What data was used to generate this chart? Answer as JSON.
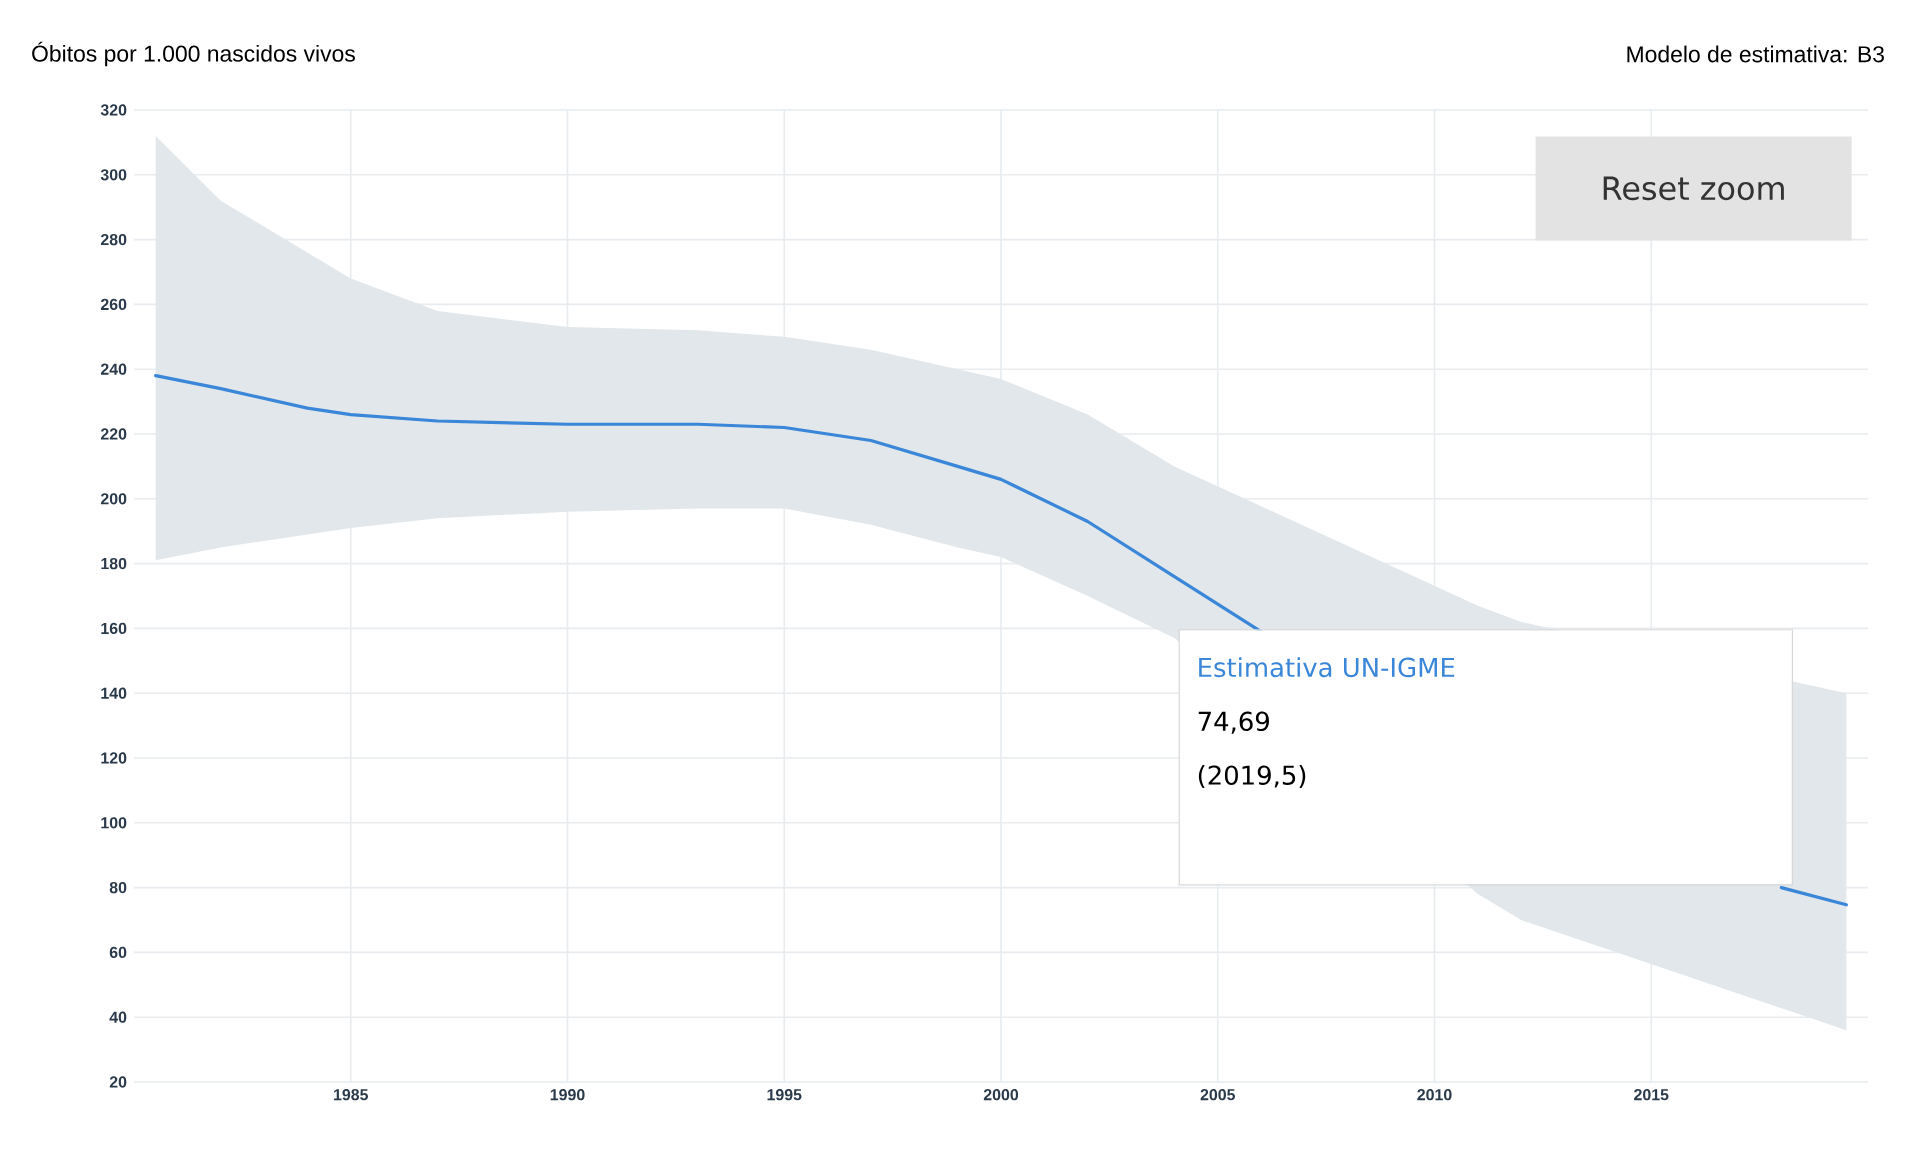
{
  "chart_data": {
    "type": "line",
    "title": "Óbitos por 1.000 nascidos vivos",
    "subtitle": "Modelo de estimativa: B3",
    "x": [
      1980.5,
      1982,
      1984,
      1985,
      1987,
      1990,
      1993,
      1995,
      1997,
      1999,
      2000,
      2002,
      2004,
      2006,
      2008,
      2010,
      2011,
      2012,
      2014,
      2016,
      2018,
      2019.5
    ],
    "series": [
      {
        "name": "Estimativa UN-IGME",
        "color": "#3a86d8",
        "values": [
          238,
          234,
          228,
          226,
          224,
          223,
          223,
          222,
          218,
          210,
          206,
          193,
          176,
          159,
          null,
          null,
          null,
          null,
          null,
          null,
          80,
          74.69
        ],
        "lower": [
          181,
          185,
          189,
          191,
          194,
          196,
          197,
          197,
          192,
          185,
          182,
          170,
          157,
          null,
          null,
          null,
          78,
          70,
          null,
          null,
          null,
          36
        ],
        "upper": [
          312,
          292,
          276,
          268,
          258,
          253,
          252,
          250,
          246,
          240,
          237,
          226,
          210,
          null,
          null,
          null,
          167,
          162,
          null,
          null,
          null,
          140
        ]
      }
    ],
    "xlim": [
      1980,
      2020
    ],
    "ylim": [
      20,
      320
    ],
    "xticks": [
      1985,
      1990,
      1995,
      2000,
      2005,
      2010,
      2015
    ],
    "yticks": [
      20,
      40,
      60,
      80,
      100,
      120,
      140,
      160,
      180,
      200,
      220,
      240,
      260,
      280,
      300,
      320
    ],
    "grid": true,
    "annotations": [
      "Reset zoom",
      "74,69",
      "(2019,5)"
    ]
  }
}
